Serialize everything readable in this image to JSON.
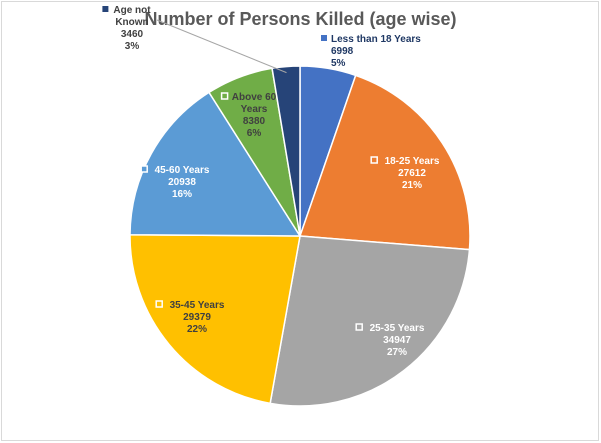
{
  "chart_data": {
    "type": "pie",
    "title": "Number of Persons Killed (age wise)",
    "slices": [
      {
        "name": "Less than 18 Years",
        "lines": [
          "Less than 18 Years"
        ],
        "value": 6998,
        "value_label": "6998",
        "pct_label": "5%",
        "color": "#4472C4",
        "label_color": "#1f3864"
      },
      {
        "name": "18-25 Years",
        "lines": [
          "18-25 Years"
        ],
        "value": 27612,
        "value_label": "27612",
        "pct_label": "21%",
        "color": "#ED7D31",
        "label_color": "#ffffff"
      },
      {
        "name": "25-35 Years",
        "lines": [
          "25-35 Years"
        ],
        "value": 34947,
        "value_label": "34947",
        "pct_label": "27%",
        "color": "#A5A5A5",
        "label_color": "#ffffff"
      },
      {
        "name": "35-45 Years",
        "lines": [
          "35-45 Years"
        ],
        "value": 29379,
        "value_label": "29379",
        "pct_label": "22%",
        "color": "#FFC000",
        "label_color": "#404040"
      },
      {
        "name": "45-60 Years",
        "lines": [
          "45-60 Years"
        ],
        "value": 20938,
        "value_label": "20938",
        "pct_label": "16%",
        "color": "#5B9BD5",
        "label_color": "#ffffff"
      },
      {
        "name": "Above 60 Years",
        "lines": [
          "Above 60",
          "Years"
        ],
        "value": 8380,
        "value_label": "8380",
        "pct_label": "6%",
        "color": "#70AD47",
        "label_color": "#404040"
      },
      {
        "name": "Age not Known",
        "lines": [
          "Age not",
          "Known"
        ],
        "value": 3460,
        "value_label": "3460",
        "pct_label": "3%",
        "color": "#264478",
        "label_color": "#404040"
      }
    ],
    "start_angle_deg": 0,
    "direction": "clockwise",
    "labels": "inside-with-legend-key",
    "outside_labels": [
      "Less than 18 Years",
      "Age not Known"
    ]
  }
}
